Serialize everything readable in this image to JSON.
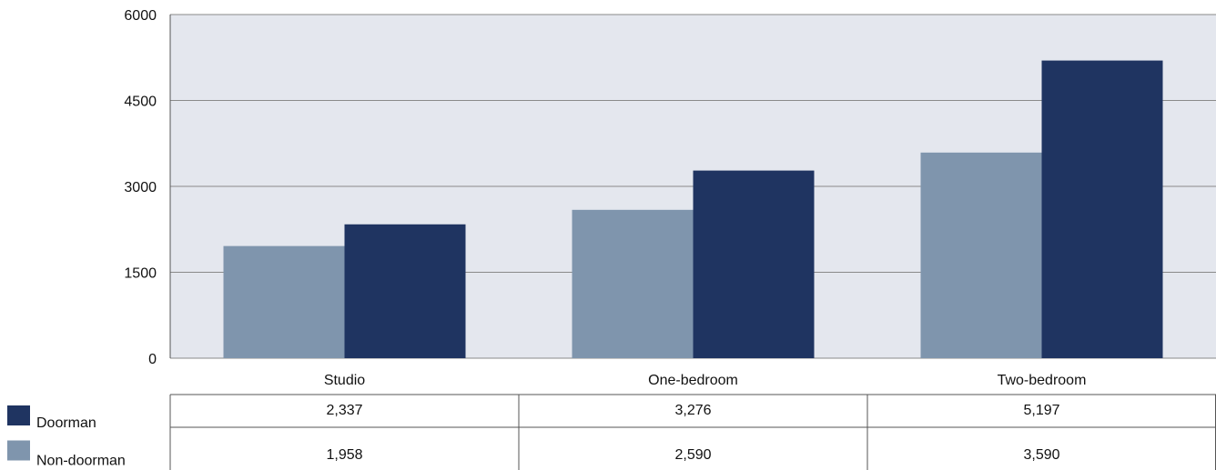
{
  "chart_data": {
    "type": "bar",
    "categories": [
      "Studio",
      "One-bedroom",
      "Two-bedroom"
    ],
    "series": [
      {
        "name": "Doorman",
        "color": "#1f3461",
        "values": [
          2337,
          3276,
          5197
        ],
        "value_labels": [
          "2,337",
          "3,276",
          "5,197"
        ]
      },
      {
        "name": "Non-doorman",
        "color": "#7f95ad",
        "values": [
          1958,
          2590,
          3590
        ],
        "value_labels": [
          "1,958",
          "2,590",
          "3,590"
        ]
      }
    ],
    "ylim": [
      0,
      6000
    ],
    "yticks": [
      0,
      1500,
      3000,
      4500,
      6000
    ],
    "grid": true,
    "plot_background": "#e4e7ee"
  }
}
